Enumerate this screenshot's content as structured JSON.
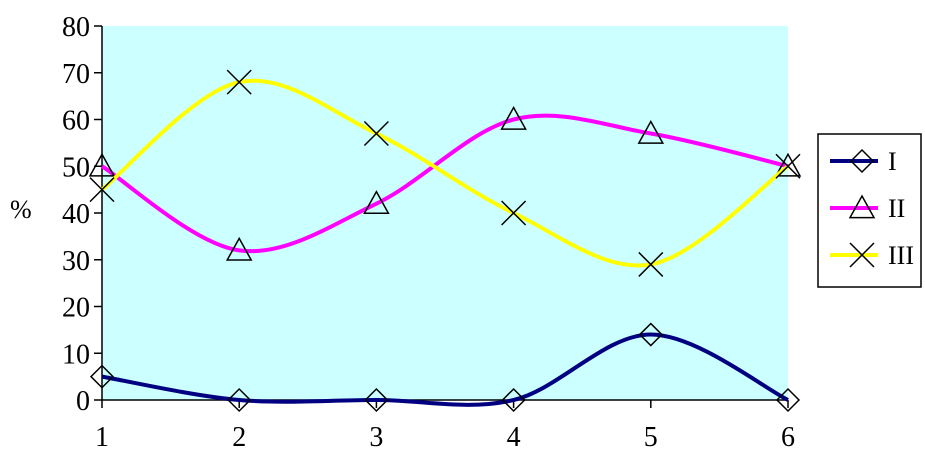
{
  "chart_data": {
    "type": "line",
    "smooth": true,
    "x": [
      1,
      2,
      3,
      4,
      5,
      6
    ],
    "ylim": [
      0,
      80
    ],
    "y_ticks": [
      0,
      10,
      20,
      30,
      40,
      50,
      60,
      70,
      80
    ],
    "x_ticks": [
      1,
      2,
      3,
      4,
      5,
      6
    ],
    "ylabel": "%",
    "xlabel": "",
    "title": "",
    "plot_background": "#ccffff",
    "grid": false,
    "legend_position": "right",
    "series": [
      {
        "name": "I",
        "values": [
          5,
          0,
          0,
          0,
          14,
          0
        ],
        "color": "#000080",
        "marker": "diamond"
      },
      {
        "name": "II",
        "values": [
          50,
          32,
          42,
          60,
          57,
          50
        ],
        "color": "#ff00ff",
        "marker": "triangle"
      },
      {
        "name": "III",
        "values": [
          45,
          68,
          57,
          40,
          29,
          50
        ],
        "color": "#ffff00",
        "marker": "x"
      }
    ]
  }
}
